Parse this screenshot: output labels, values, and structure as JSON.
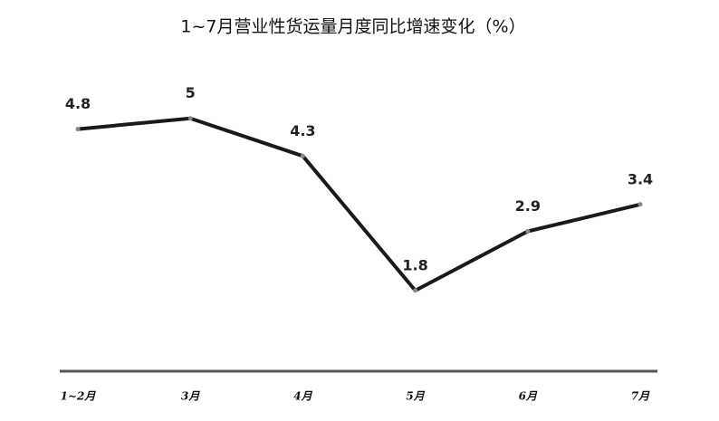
{
  "chart_data": {
    "type": "line",
    "title": "1~7月营业性货运量月度同比增速变化（%）",
    "categories": [
      "1~2月",
      "3月",
      "4月",
      "5月",
      "6月",
      "7月"
    ],
    "values": [
      4.8,
      5,
      4.3,
      1.8,
      2.9,
      3.4
    ],
    "color": "#1a1a1a",
    "ylim": [
      0.3,
      5.5
    ]
  }
}
